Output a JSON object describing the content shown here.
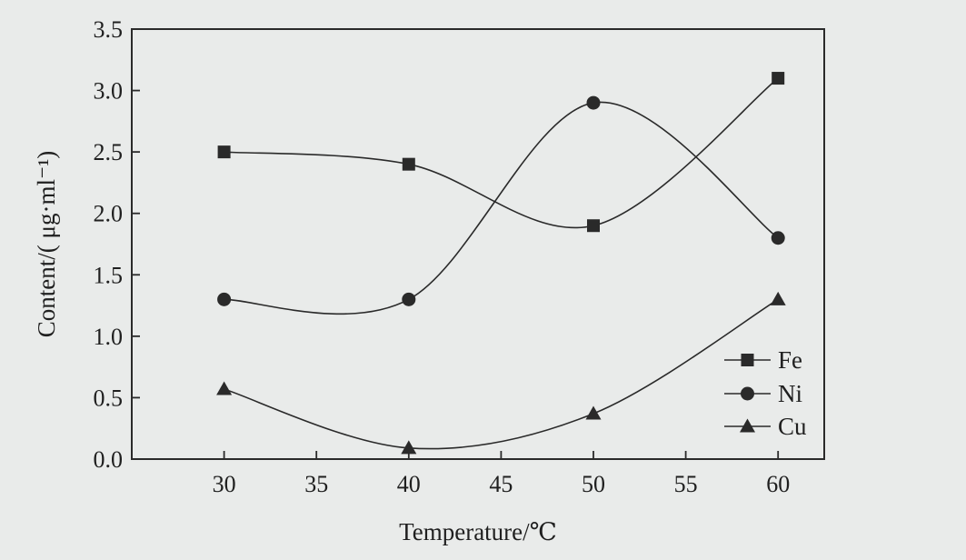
{
  "chart_data": {
    "type": "line",
    "xlabel": "Temperature/℃",
    "ylabel": "Content/( μg·ml⁻¹)",
    "x": [
      30,
      40,
      50,
      60
    ],
    "xlim": [
      25,
      62.5
    ],
    "ylim": [
      0.0,
      3.5
    ],
    "xticks": [
      30,
      35,
      40,
      45,
      50,
      55,
      60
    ],
    "yticks": [
      0.0,
      0.5,
      1.0,
      1.5,
      2.0,
      2.5,
      3.0,
      3.5
    ],
    "xtick_labels": [
      "30",
      "35",
      "40",
      "45",
      "50",
      "55",
      "60"
    ],
    "ytick_labels": [
      "0.0",
      "0.5",
      "1.0",
      "1.5",
      "2.0",
      "2.5",
      "3.0",
      "3.5"
    ],
    "grid": false,
    "smooth": true,
    "legend_position": "bottom-right",
    "series": [
      {
        "name": "Fe",
        "marker": "square",
        "values": [
          2.5,
          2.4,
          1.9,
          3.1
        ]
      },
      {
        "name": "Ni",
        "marker": "circle",
        "values": [
          1.3,
          1.3,
          2.9,
          1.8
        ]
      },
      {
        "name": "Cu",
        "marker": "triangle",
        "values": [
          0.57,
          0.09,
          0.37,
          1.3
        ]
      }
    ],
    "colors": {
      "line": "#2a2a2a",
      "background": "#e9ebea"
    }
  }
}
